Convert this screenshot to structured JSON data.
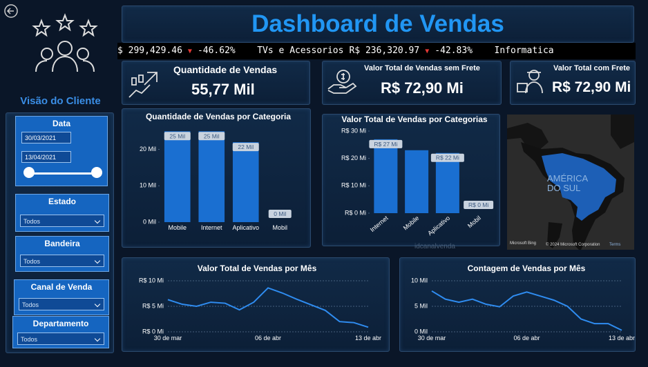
{
  "header": {
    "title": "Dashboard de Vendas"
  },
  "ticker": [
    {
      "value": "$ 299,429.46",
      "change": "-46.62%"
    },
    {
      "name": "TVs e Acessorios",
      "value": "R$ 236,320.97",
      "change": "-42.83%"
    },
    {
      "name": "Informatica"
    }
  ],
  "sidebar": {
    "title": "Visão do Cliente",
    "filters": [
      {
        "label": "Data",
        "start": "30/03/2021",
        "end": "13/04/2021"
      },
      {
        "label": "Estado",
        "value": "Todos"
      },
      {
        "label": "Bandeira",
        "value": "Todos"
      },
      {
        "label": "Canal de Venda",
        "value": "Todos"
      },
      {
        "label": "Departamento",
        "value": "Todos"
      }
    ]
  },
  "cards": [
    {
      "label": "Quantidade de Vendas",
      "value": "55,77 Mil"
    },
    {
      "label": "Valor Total de Vendas sem Frete",
      "value": "R$ 72,90 Mi"
    },
    {
      "label": "Valor Total com Frete",
      "value": "R$ 72,90 Mi"
    }
  ],
  "map": {
    "label": "AMÉRICA DO SUL",
    "brand": "Microsoft Bing",
    "attribution": "© 2024 Microsoft Corporation",
    "terms": "Terms"
  },
  "field_label": "idcanalvenda",
  "chart_data": [
    {
      "type": "bar",
      "title": "Quantidade de Vendas por Categoria",
      "categories": [
        "Mobile",
        "Internet",
        "Aplicativo",
        "Mobil"
      ],
      "values": [
        25,
        25,
        22,
        0
      ],
      "value_labels": [
        "25 Mil",
        "25 Mil",
        "22 Mil",
        "0 Mil"
      ],
      "color": "#1a6fd1",
      "ylim": [
        0,
        26
      ],
      "yticks": [
        {
          "value": 0,
          "label": "0 Mil"
        },
        {
          "value": 10,
          "label": "10 Mil"
        },
        {
          "value": 20,
          "label": "20 Mil"
        }
      ],
      "grid": false
    },
    {
      "type": "bar",
      "title": "Valor Total de Vendas por Categorias",
      "categories": [
        "Internet",
        "Mobile",
        "Aplicativo",
        "Mobil"
      ],
      "values": [
        27,
        23,
        22,
        0
      ],
      "value_labels": [
        "R$ 27 Mi",
        null,
        "R$ 22 Mi",
        "R$ 0 Mi"
      ],
      "color": "#1a6fd1",
      "ylim": [
        0,
        30
      ],
      "yticks": [
        {
          "value": 0,
          "label": "R$ 0 Mi"
        },
        {
          "value": 10,
          "label": "R$ 10 Mi"
        },
        {
          "value": 20,
          "label": "R$ 20 Mi"
        },
        {
          "value": 30,
          "label": "R$ 30 Mi"
        }
      ],
      "grid": false
    },
    {
      "type": "line",
      "title": "Valor Total de Vendas por Mês",
      "categories": [
        "30 de mar",
        null,
        null,
        null,
        null,
        null,
        null,
        "06 de abr",
        null,
        null,
        null,
        null,
        null,
        null,
        "13 de abr"
      ],
      "values": [
        6.3,
        5.4,
        5.0,
        5.8,
        5.6,
        4.3,
        5.8,
        8.6,
        7.6,
        6.4,
        5.3,
        4.2,
        2.0,
        1.8,
        0.9
      ],
      "color": "#2f8cf0",
      "ylim": [
        0,
        10
      ],
      "yticks": [
        {
          "value": 0,
          "label": "R$ 0 Mi"
        },
        {
          "value": 5,
          "label": "R$ 5 Mi"
        },
        {
          "value": 10,
          "label": "R$ 10 Mi"
        }
      ],
      "grid": true
    },
    {
      "type": "line",
      "title": "Contagem de Vendas por Mês",
      "categories": [
        "30 de mar",
        null,
        null,
        null,
        null,
        null,
        null,
        "06 de abr",
        null,
        null,
        null,
        null,
        null,
        null,
        "13 de abr"
      ],
      "values": [
        8.0,
        6.4,
        5.8,
        6.4,
        5.4,
        4.9,
        7.0,
        7.8,
        7.0,
        6.2,
        5.0,
        2.5,
        1.6,
        1.6,
        0.3
      ],
      "color": "#2f8cf0",
      "ylim": [
        0,
        10
      ],
      "yticks": [
        {
          "value": 0,
          "label": "0 Mil"
        },
        {
          "value": 5,
          "label": "5 Mil"
        },
        {
          "value": 10,
          "label": "10 Mil"
        }
      ],
      "grid": true
    }
  ]
}
